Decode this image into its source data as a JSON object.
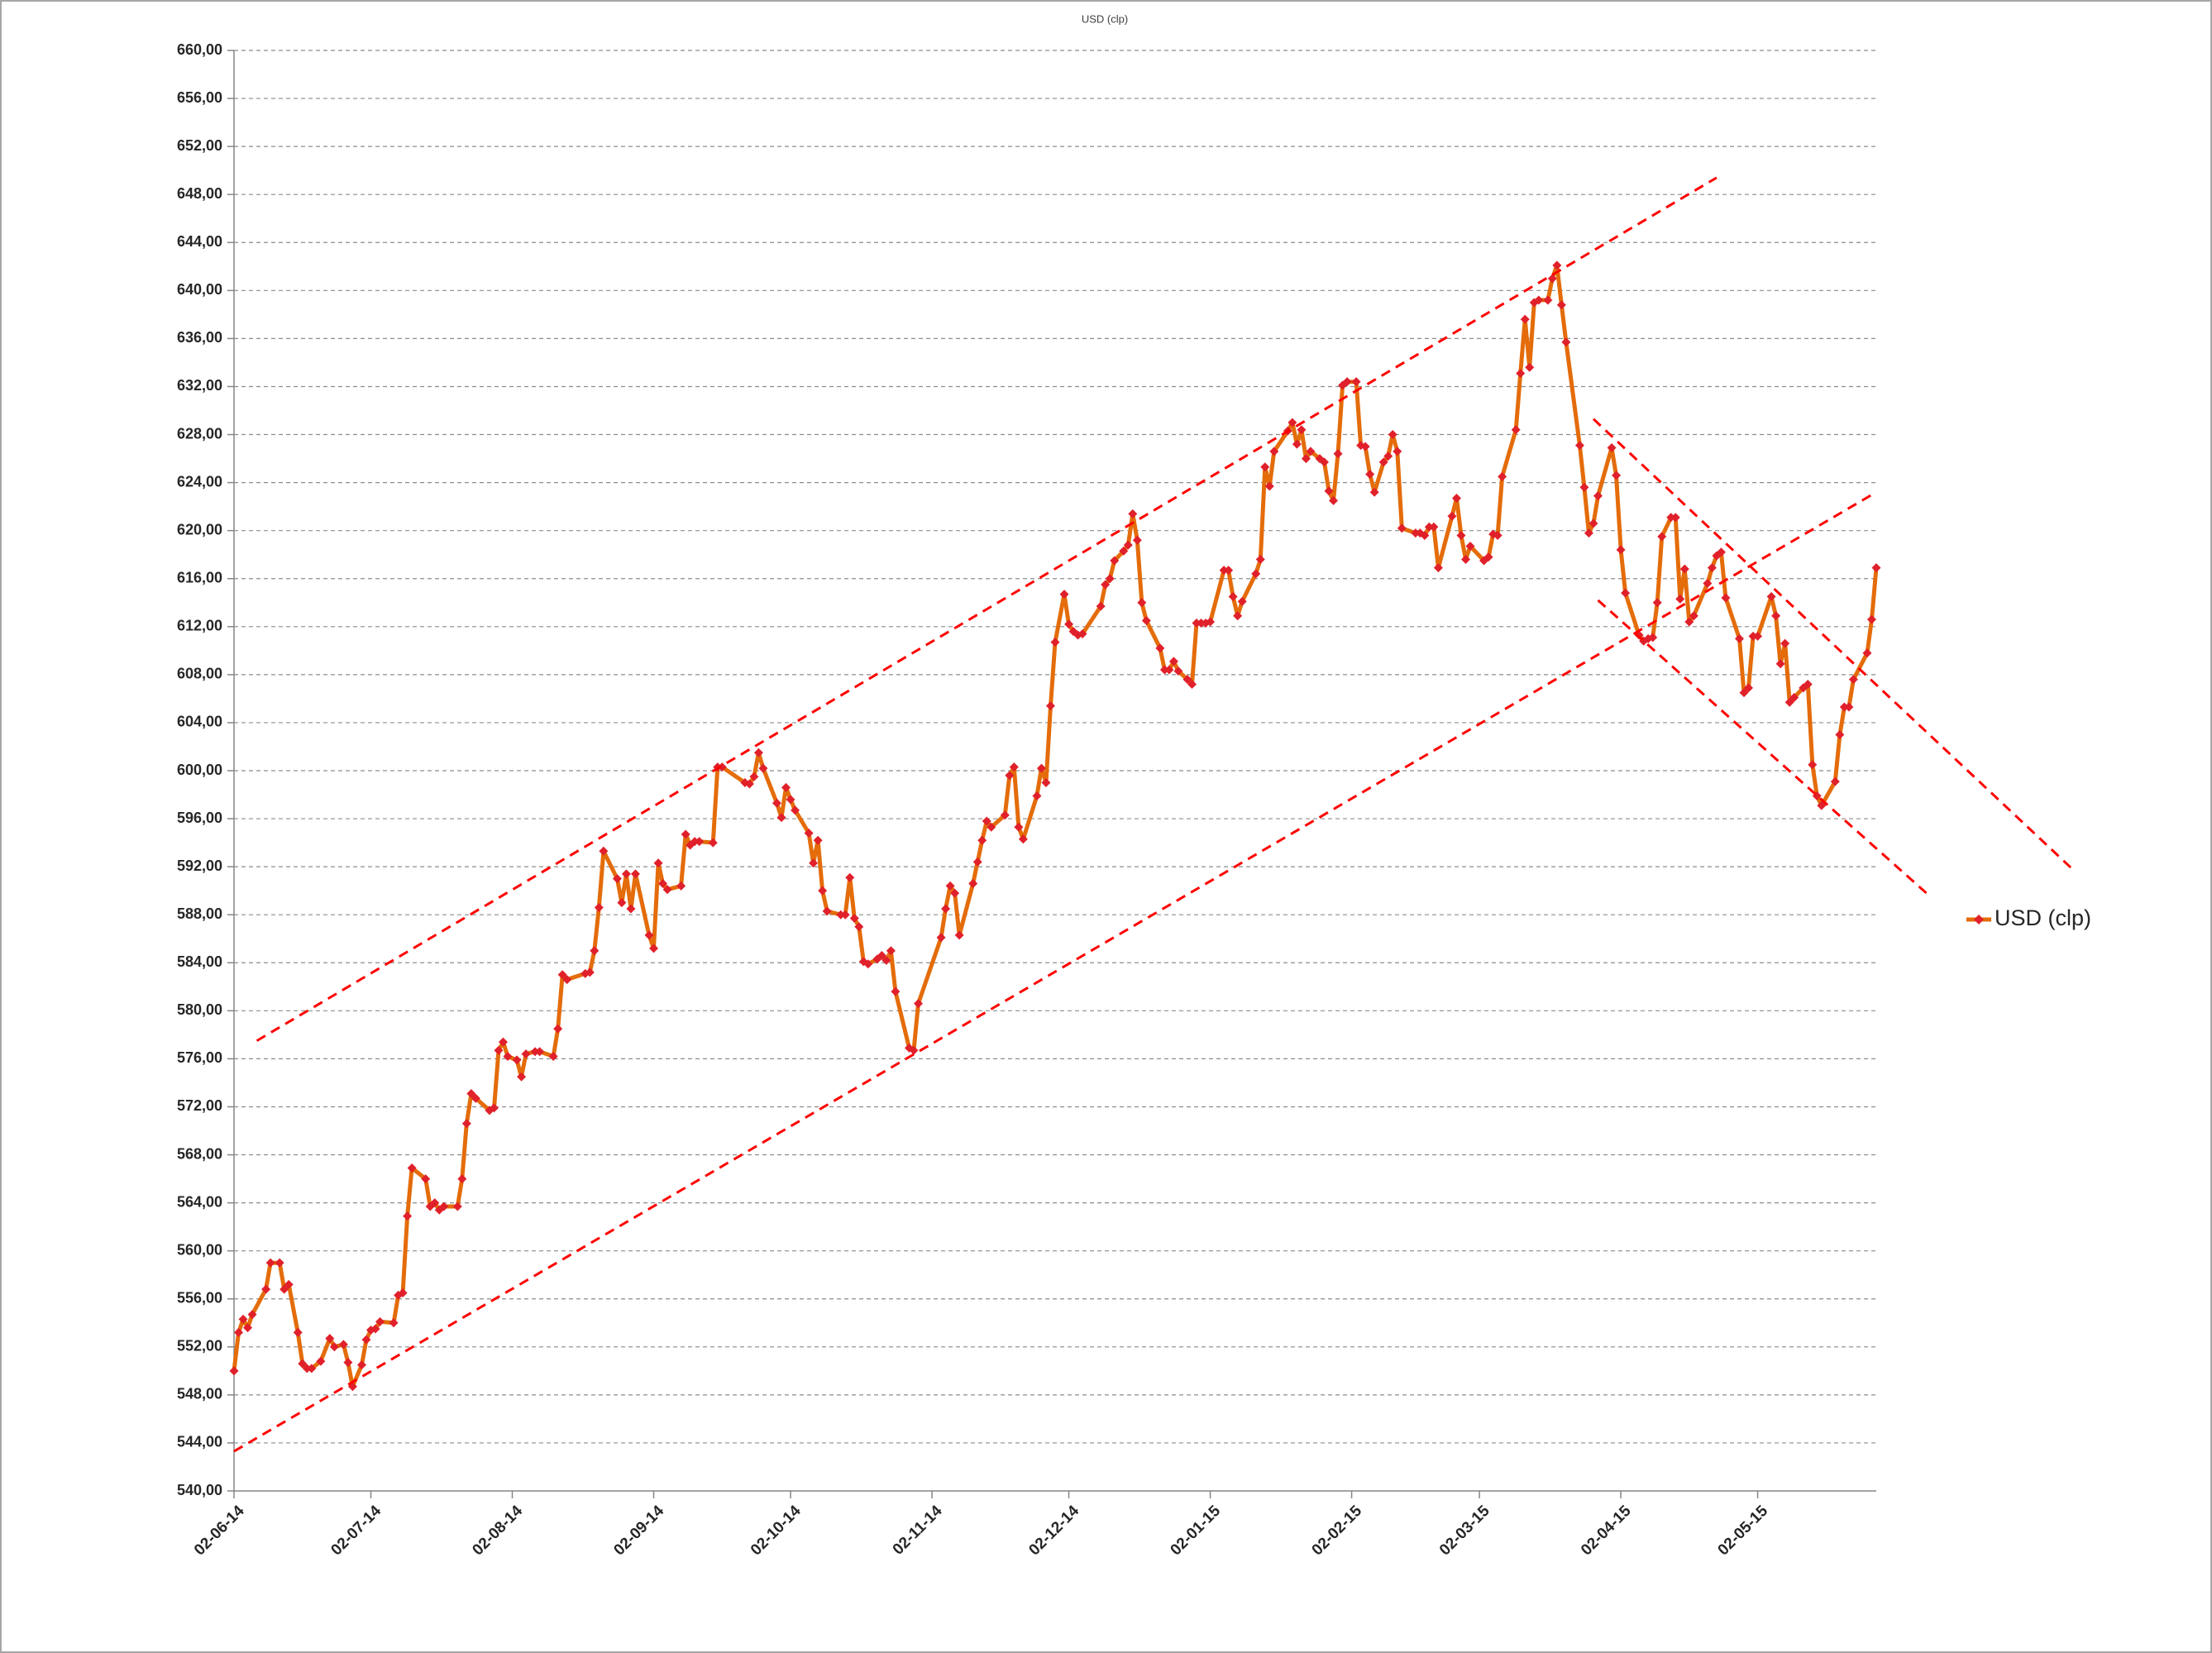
{
  "chart_data": {
    "type": "line",
    "title": "USD (clp)",
    "xlim": [
      "02-06-14",
      "28-05-15"
    ],
    "xticks": [
      "02-06-14",
      "02-07-14",
      "02-08-14",
      "02-09-14",
      "02-10-14",
      "02-11-14",
      "02-12-14",
      "02-01-15",
      "02-02-15",
      "02-03-15",
      "02-04-15",
      "02-05-15"
    ],
    "ylim": [
      540,
      660
    ],
    "yticks": [
      {
        "value": 540,
        "label": "540,00"
      },
      {
        "value": 544,
        "label": "544,00"
      },
      {
        "value": 548,
        "label": "548,00"
      },
      {
        "value": 552,
        "label": "552,00"
      },
      {
        "value": 556,
        "label": "556,00"
      },
      {
        "value": 560,
        "label": "560,00"
      },
      {
        "value": 564,
        "label": "564,00"
      },
      {
        "value": 568,
        "label": "568,00"
      },
      {
        "value": 572,
        "label": "572,00"
      },
      {
        "value": 576,
        "label": "576,00"
      },
      {
        "value": 580,
        "label": "580,00"
      },
      {
        "value": 584,
        "label": "584,00"
      },
      {
        "value": 588,
        "label": "588,00"
      },
      {
        "value": 592,
        "label": "592,00"
      },
      {
        "value": 596,
        "label": "596,00"
      },
      {
        "value": 600,
        "label": "600,00"
      },
      {
        "value": 604,
        "label": "604,00"
      },
      {
        "value": 608,
        "label": "608,00"
      },
      {
        "value": 612,
        "label": "612,00"
      },
      {
        "value": 616,
        "label": "616,00"
      },
      {
        "value": 620,
        "label": "620,00"
      },
      {
        "value": 624,
        "label": "624,00"
      },
      {
        "value": 628,
        "label": "628,00"
      },
      {
        "value": 632,
        "label": "632,00"
      },
      {
        "value": 636,
        "label": "636,00"
      },
      {
        "value": 640,
        "label": "640,00"
      },
      {
        "value": 644,
        "label": "644,00"
      },
      {
        "value": 648,
        "label": "648,00"
      },
      {
        "value": 652,
        "label": "652,00"
      },
      {
        "value": 656,
        "label": "656,00"
      },
      {
        "value": 660,
        "label": "660,00"
      }
    ],
    "grid": true,
    "legend_position": "right",
    "x": [
      "02-06-14",
      "03-06-14",
      "04-06-14",
      "05-06-14",
      "06-06-14",
      "09-06-14",
      "10-06-14",
      "12-06-14",
      "13-06-14",
      "14-06-14",
      "16-06-14",
      "17-06-14",
      "18-06-14",
      "19-06-14",
      "21-06-14",
      "23-06-14",
      "24-06-14",
      "26-06-14",
      "27-06-14",
      "28-06-14",
      "30-06-14",
      "01-07-14",
      "02-07-14",
      "03-07-14",
      "04-07-14",
      "07-07-14",
      "08-07-14",
      "09-07-14",
      "10-07-14",
      "11-07-14",
      "14-07-14",
      "15-07-14",
      "16-07-14",
      "17-07-14",
      "18-07-14",
      "21-07-14",
      "22-07-14",
      "23-07-14",
      "24-07-14",
      "25-07-14",
      "28-07-14",
      "29-07-14",
      "30-07-14",
      "31-07-14",
      "01-08-14",
      "03-08-14",
      "04-08-14",
      "05-08-14",
      "07-08-14",
      "08-08-14",
      "11-08-14",
      "12-08-14",
      "13-08-14",
      "14-08-14",
      "18-08-14",
      "19-08-14",
      "20-08-14",
      "21-08-14",
      "22-08-14",
      "25-08-14",
      "26-08-14",
      "27-08-14",
      "28-08-14",
      "29-08-14",
      "01-09-14",
      "02-09-14",
      "03-09-14",
      "04-09-14",
      "05-09-14",
      "08-09-14",
      "09-09-14",
      "10-09-14",
      "11-09-14",
      "12-09-14",
      "15-09-14",
      "16-09-14",
      "17-09-14",
      "22-09-14",
      "23-09-14",
      "24-09-14",
      "25-09-14",
      "26-09-14",
      "29-09-14",
      "30-09-14",
      "01-10-14",
      "02-10-14",
      "03-10-14",
      "06-10-14",
      "07-10-14",
      "08-10-14",
      "09-10-14",
      "10-10-14",
      "13-10-14",
      "14-10-14",
      "15-10-14",
      "16-10-14",
      "17-10-14",
      "18-10-14",
      "19-10-14",
      "21-10-14",
      "22-10-14",
      "23-10-14",
      "24-10-14",
      "25-10-14",
      "28-10-14",
      "29-10-14",
      "30-10-14",
      "04-11-14",
      "05-11-14",
      "06-11-14",
      "07-11-14",
      "08-11-14",
      "11-11-14",
      "12-11-14",
      "13-11-14",
      "14-11-14",
      "15-11-14",
      "18-11-14",
      "19-11-14",
      "20-11-14",
      "21-11-14",
      "22-11-14",
      "25-11-14",
      "26-11-14",
      "27-11-14",
      "28-11-14",
      "29-11-14",
      "01-12-14",
      "02-12-14",
      "03-12-14",
      "04-12-14",
      "05-12-14",
      "09-12-14",
      "10-12-14",
      "11-12-14",
      "12-12-14",
      "14-12-14",
      "15-12-14",
      "16-12-14",
      "17-12-14",
      "18-12-14",
      "19-12-14",
      "22-12-14",
      "23-12-14",
      "24-12-14",
      "25-12-14",
      "26-12-14",
      "28-12-14",
      "29-12-14",
      "30-12-14",
      "31-12-14",
      "01-01-15",
      "02-01-15",
      "05-01-15",
      "06-01-15",
      "07-01-15",
      "08-01-15",
      "09-01-15",
      "12-01-15",
      "13-01-15",
      "14-01-15",
      "15-01-15",
      "16-01-15",
      "19-01-15",
      "20-01-15",
      "21-01-15",
      "22-01-15",
      "23-01-15",
      "24-01-15",
      "26-01-15",
      "27-01-15",
      "28-01-15",
      "29-01-15",
      "30-01-15",
      "31-01-15",
      "01-02-15",
      "03-02-15",
      "04-02-15",
      "05-02-15",
      "06-02-15",
      "07-02-15",
      "09-02-15",
      "10-02-15",
      "11-02-15",
      "12-02-15",
      "13-02-15",
      "16-02-15",
      "17-02-15",
      "18-02-15",
      "19-02-15",
      "20-02-15",
      "21-02-15",
      "24-02-15",
      "25-02-15",
      "26-02-15",
      "27-02-15",
      "28-02-15",
      "03-03-15",
      "04-03-15",
      "05-03-15",
      "06-03-15",
      "07-03-15",
      "10-03-15",
      "11-03-15",
      "12-03-15",
      "13-03-15",
      "14-03-15",
      "15-03-15",
      "17-03-15",
      "18-03-15",
      "19-03-15",
      "20-03-15",
      "21-03-15",
      "24-03-15",
      "25-03-15",
      "26-03-15",
      "27-03-15",
      "28-03-15",
      "31-03-15",
      "01-04-15",
      "02-04-15",
      "03-04-15",
      "06-04-15",
      "07-04-15",
      "08-04-15",
      "09-04-15",
      "10-04-15",
      "11-04-15",
      "13-04-15",
      "14-04-15",
      "15-04-15",
      "16-04-15",
      "17-04-15",
      "18-04-15",
      "21-04-15",
      "22-04-15",
      "23-04-15",
      "24-04-15",
      "25-04-15",
      "28-04-15",
      "29-04-15",
      "30-04-15",
      "01-05-15",
      "02-05-15",
      "05-05-15",
      "06-05-15",
      "07-05-15",
      "08-05-15",
      "09-05-15",
      "10-05-15",
      "12-05-15",
      "13-05-15",
      "14-05-15",
      "15-05-15",
      "16-05-15",
      "19-05-15",
      "20-05-15",
      "21-05-15",
      "22-05-15",
      "23-05-15",
      "26-05-15",
      "27-05-15",
      "28-05-15"
    ],
    "series": [
      {
        "name": "USD (clp)",
        "color": "#e46c0a",
        "marker_color": "#e0202a",
        "values": [
          550.0,
          553.2,
          554.3,
          553.6,
          554.7,
          556.8,
          559.0,
          559.0,
          556.8,
          557.2,
          553.2,
          550.6,
          550.2,
          550.2,
          550.8,
          552.7,
          552.0,
          552.2,
          550.7,
          548.7,
          550.5,
          552.6,
          553.4,
          553.5,
          554.1,
          554.0,
          556.3,
          556.5,
          562.9,
          566.9,
          566.0,
          563.7,
          564.0,
          563.4,
          563.7,
          563.7,
          566.0,
          570.6,
          573.1,
          572.7,
          571.7,
          571.9,
          576.7,
          577.4,
          576.2,
          575.9,
          574.5,
          576.4,
          576.6,
          576.6,
          576.2,
          578.5,
          583.0,
          582.6,
          583.1,
          583.2,
          585.0,
          588.6,
          593.3,
          591.0,
          589.0,
          591.4,
          588.5,
          591.4,
          586.3,
          585.2,
          592.3,
          590.6,
          590.1,
          590.4,
          594.7,
          593.8,
          594.1,
          594.1,
          594.0,
          600.3,
          600.3,
          599.0,
          598.9,
          599.5,
          601.5,
          600.2,
          597.3,
          596.1,
          598.6,
          597.6,
          596.7,
          594.8,
          592.3,
          594.2,
          590.0,
          588.3,
          588.0,
          588.0,
          591.1,
          587.7,
          587.0,
          584.1,
          583.9,
          584.3,
          584.6,
          584.2,
          585.0,
          581.6,
          576.9,
          576.7,
          580.6,
          586.1,
          588.5,
          590.4,
          589.8,
          586.3,
          590.6,
          592.4,
          594.2,
          595.8,
          595.3,
          596.3,
          599.6,
          600.3,
          595.3,
          594.3,
          597.9,
          600.2,
          599.0,
          605.4,
          610.7,
          614.7,
          612.2,
          611.6,
          611.3,
          611.4,
          613.7,
          615.5,
          616.0,
          617.5,
          618.3,
          618.8,
          621.4,
          619.2,
          614.0,
          612.5,
          610.2,
          608.4,
          608.4,
          609.1,
          608.3,
          607.6,
          607.2,
          612.3,
          612.3,
          612.3,
          612.4,
          616.7,
          616.7,
          614.5,
          612.9,
          614.1,
          616.4,
          617.6,
          625.3,
          623.7,
          626.6,
          628.3,
          629.0,
          627.2,
          628.4,
          626.0,
          626.6,
          626.0,
          625.7,
          623.3,
          622.5,
          626.4,
          632.1,
          632.4,
          632.4,
          627.1,
          627.0,
          624.7,
          623.2,
          625.7,
          626.2,
          628.0,
          626.6,
          620.2,
          619.8,
          619.8,
          619.6,
          620.3,
          620.3,
          616.9,
          621.2,
          622.7,
          619.6,
          617.6,
          618.7,
          617.5,
          617.8,
          619.7,
          619.6,
          624.5,
          628.4,
          633.1,
          637.6,
          633.6,
          639.0,
          639.2,
          639.2,
          641.0,
          642.1,
          638.8,
          635.7,
          627.1,
          623.6,
          619.8,
          620.6,
          622.9,
          626.9,
          624.6,
          618.4,
          614.8,
          611.3,
          610.8,
          611.0,
          611.1,
          614.0,
          619.5,
          621.1,
          621.1,
          614.3,
          616.8,
          612.4,
          612.9,
          615.6,
          616.9,
          617.9,
          618.2,
          614.4,
          611.0,
          606.5,
          606.9,
          611.2,
          611.2,
          614.5,
          612.9,
          608.9,
          610.6,
          605.7,
          606.1,
          606.9,
          607.2,
          600.5,
          597.9,
          597.1,
          599.1,
          603.0,
          605.3,
          605.3,
          607.6,
          609.8,
          612.6,
          616.9
        ]
      }
    ],
    "trend_lines": [
      {
        "color": "#ff0000",
        "dashed": true,
        "x": [
          "07-06-14",
          "23-04-15"
        ],
        "y": [
          577.5,
          649.4
        ]
      },
      {
        "color": "#ff0000",
        "dashed": true,
        "x": [
          "02-06-14",
          "28-05-15"
        ],
        "y": [
          543.3,
          623.2
        ]
      },
      {
        "color": "#ff0000",
        "dashed": true,
        "x": [
          "27-03-15",
          "10-07-15"
        ],
        "y": [
          629.3,
          591.8
        ]
      },
      {
        "color": "#ff0000",
        "dashed": true,
        "x": [
          "28-03-15",
          "08-06-15"
        ],
        "y": [
          614.2,
          589.8
        ]
      }
    ]
  }
}
